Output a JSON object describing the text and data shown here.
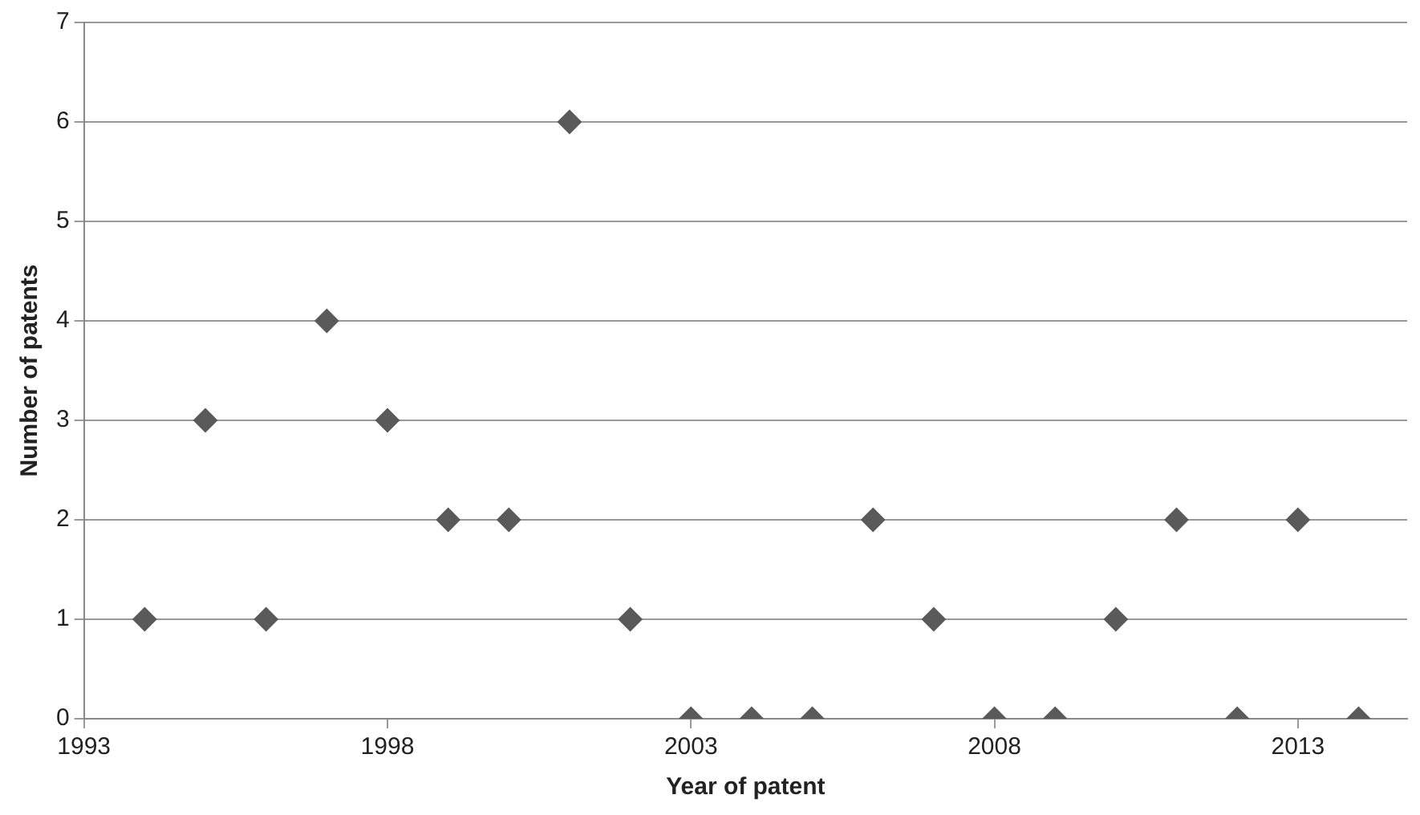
{
  "chart_data": {
    "type": "scatter",
    "xlabel": "Year of patent",
    "ylabel": "Number of patents",
    "x": [
      1994,
      1995,
      1996,
      1997,
      1998,
      1999,
      2000,
      2001,
      2002,
      2003,
      2004,
      2005,
      2006,
      2007,
      2008,
      2009,
      2010,
      2011,
      2012,
      2013,
      2014
    ],
    "series": [
      {
        "color": "#5a5a5a",
        "values": [
          1,
          3,
          1,
          4,
          3,
          2,
          2,
          6,
          1,
          0,
          0,
          0,
          2,
          1,
          0,
          0,
          1,
          2,
          0,
          2,
          0
        ]
      }
    ],
    "xlim": [
      1993,
      2014.8
    ],
    "xticks": [
      1993,
      1998,
      2003,
      2008,
      2013
    ],
    "ylim": [
      0,
      7
    ],
    "yticks": [
      0,
      1,
      2,
      3,
      4,
      5,
      6,
      7
    ],
    "grid": "y",
    "legend": false,
    "marker": "diamond"
  }
}
